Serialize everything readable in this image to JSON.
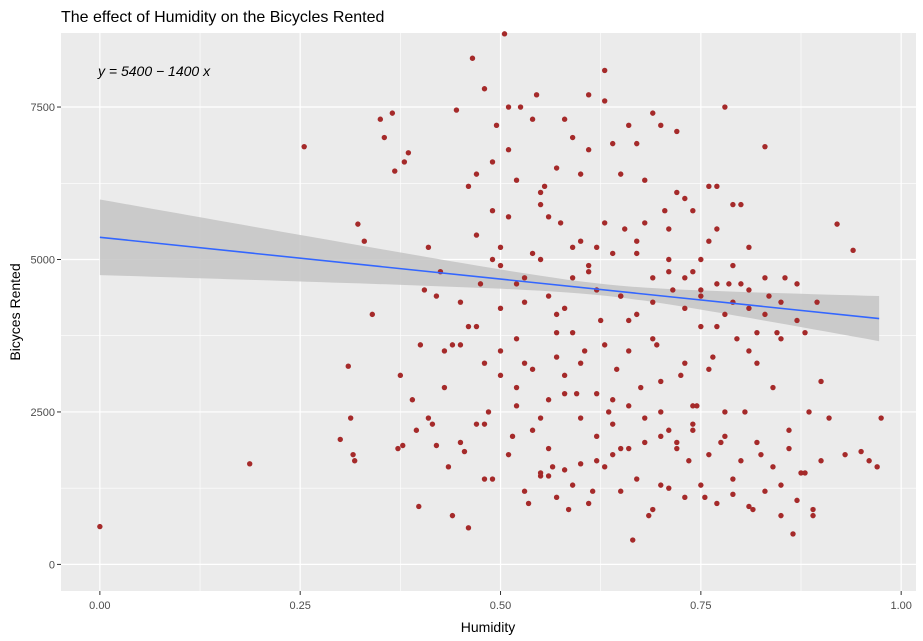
{
  "chart_data": {
    "type": "scatter",
    "title": "The effect of Humidity on the Bicycles Rented",
    "xlabel": "Humidity",
    "ylabel": "Bicyces Rented",
    "xlim": [
      -0.0485,
      1.0185
    ],
    "ylim": [
      -436,
      8714
    ],
    "x_ticks": [
      0.0,
      0.25,
      0.5,
      0.75,
      1.0
    ],
    "x_tick_labels": [
      "0.00",
      "0.25",
      "0.50",
      "0.75",
      "1.00"
    ],
    "y_ticks": [
      0,
      2500,
      5000,
      7500
    ],
    "y_tick_labels": [
      "0",
      "2500",
      "5000",
      "7500"
    ],
    "grid": true,
    "annotation": "y = 5400 − 1400 x",
    "colors": {
      "panel": "#ebebeb",
      "grid": "#ffffff",
      "points": "#a52a2a",
      "fit_line": "#3366ff",
      "confidence_band": "#c4c4c4"
    },
    "fit": {
      "intercept": 5364,
      "slope": -1371,
      "x_range": [
        0.0,
        0.9725
      ],
      "band_halfwidth_ends": [
        620,
        370
      ],
      "band_halfwidth_center": 95,
      "band_center_x": 0.63
    },
    "series": [
      {
        "x": [
          0.0,
          0.187,
          0.255,
          0.3,
          0.31,
          0.313,
          0.316,
          0.318,
          0.322,
          0.33,
          0.34,
          0.35,
          0.355,
          0.365,
          0.368,
          0.372,
          0.375,
          0.378,
          0.38,
          0.385,
          0.39,
          0.395,
          0.398,
          0.4,
          0.405,
          0.41,
          0.415,
          0.42,
          0.425,
          0.43,
          0.435,
          0.44,
          0.445,
          0.45,
          0.455,
          0.46,
          0.465,
          0.47,
          0.475,
          0.48,
          0.485,
          0.49,
          0.495,
          0.5,
          0.505,
          0.51,
          0.515,
          0.52,
          0.525,
          0.53,
          0.535,
          0.54,
          0.545,
          0.55,
          0.555,
          0.56,
          0.565,
          0.57,
          0.575,
          0.58,
          0.585,
          0.59,
          0.595,
          0.6,
          0.605,
          0.61,
          0.615,
          0.62,
          0.625,
          0.63,
          0.635,
          0.64,
          0.645,
          0.65,
          0.655,
          0.66,
          0.665,
          0.67,
          0.675,
          0.68,
          0.685,
          0.69,
          0.695,
          0.7,
          0.705,
          0.71,
          0.715,
          0.72,
          0.725,
          0.73,
          0.735,
          0.74,
          0.745,
          0.75,
          0.755,
          0.76,
          0.765,
          0.77,
          0.775,
          0.78,
          0.785,
          0.79,
          0.795,
          0.8,
          0.805,
          0.81,
          0.815,
          0.82,
          0.825,
          0.83,
          0.835,
          0.84,
          0.845,
          0.85,
          0.855,
          0.86,
          0.865,
          0.87,
          0.875,
          0.88,
          0.885,
          0.89,
          0.895,
          0.9,
          0.91,
          0.92,
          0.93,
          0.94,
          0.95,
          0.96,
          0.97,
          0.975,
          0.46,
          0.47,
          0.48,
          0.49,
          0.5,
          0.51,
          0.52,
          0.53,
          0.54,
          0.55,
          0.56,
          0.57,
          0.58,
          0.59,
          0.6,
          0.61,
          0.62,
          0.63,
          0.64,
          0.65,
          0.66,
          0.67,
          0.68,
          0.69,
          0.7,
          0.71,
          0.72,
          0.73,
          0.74,
          0.75,
          0.76,
          0.77,
          0.78,
          0.79,
          0.8,
          0.81,
          0.82,
          0.5,
          0.52,
          0.54,
          0.56,
          0.58,
          0.6,
          0.62,
          0.64,
          0.66,
          0.68,
          0.7,
          0.72,
          0.74,
          0.76,
          0.48,
          0.5,
          0.52,
          0.55,
          0.57,
          0.59,
          0.61,
          0.63,
          0.65,
          0.67,
          0.69,
          0.71,
          0.73,
          0.75,
          0.77,
          0.79,
          0.81,
          0.83,
          0.85,
          0.87,
          0.45,
          0.47,
          0.49,
          0.51,
          0.53,
          0.55,
          0.57,
          0.59,
          0.61,
          0.63,
          0.65,
          0.67,
          0.69,
          0.71,
          0.73,
          0.75,
          0.77,
          0.79,
          0.81,
          0.83,
          0.85,
          0.42,
          0.44,
          0.46,
          0.48,
          0.5,
          0.52,
          0.54,
          0.56,
          0.58,
          0.6,
          0.62,
          0.64,
          0.66,
          0.68,
          0.7,
          0.72,
          0.74,
          0.76,
          0.78,
          0.8,
          0.82,
          0.84,
          0.86,
          0.88,
          0.9,
          0.41,
          0.43,
          0.45,
          0.47,
          0.49,
          0.51,
          0.53,
          0.55,
          0.57,
          0.59,
          0.61,
          0.63,
          0.65,
          0.67,
          0.69,
          0.71,
          0.73,
          0.75,
          0.77,
          0.79,
          0.81,
          0.83,
          0.85,
          0.87,
          0.89,
          0.55,
          0.58,
          0.62,
          0.66,
          0.7,
          0.74,
          0.78,
          0.64,
          0.6,
          0.56
        ],
        "y": [
          620,
          1650,
          6850,
          2050,
          3250,
          2400,
          1800,
          1700,
          5580,
          5300,
          4100,
          7300,
          7000,
          7400,
          6450,
          1900,
          3100,
          1950,
          6600,
          6750,
          2700,
          2200,
          950,
          3600,
          4500,
          5200,
          2300,
          1950,
          4800,
          3500,
          1600,
          800,
          7450,
          4300,
          1850,
          6200,
          8300,
          3900,
          4600,
          1400,
          2500,
          5800,
          7200,
          4900,
          8700,
          6800,
          2100,
          3700,
          7500,
          3300,
          1000,
          5100,
          7700,
          2400,
          6200,
          4400,
          1600,
          3800,
          5600,
          7300,
          900,
          4700,
          2800,
          6400,
          3500,
          7700,
          1200,
          5200,
          4000,
          8100,
          2500,
          6900,
          3200,
          1900,
          5500,
          7200,
          400,
          4100,
          2900,
          6300,
          800,
          7400,
          3600,
          1300,
          5800,
          2200,
          4500,
          7100,
          3100,
          6000,
          1700,
          4800,
          2600,
          3900,
          1100,
          5300,
          3400,
          6200,
          2000,
          7500,
          4600,
          1400,
          3700,
          5900,
          2500,
          4200,
          900,
          3300,
          1800,
          6850,
          4400,
          2900,
          3800,
          1300,
          4700,
          2200,
          500,
          4600,
          1500,
          3800,
          2500,
          800,
          4300,
          3000,
          2400,
          5580,
          1800,
          5150,
          1850,
          1700,
          1600,
          2400,
          600,
          6400,
          7800,
          6600,
          5200,
          7500,
          6300,
          4700,
          7300,
          6100,
          5700,
          6500,
          4200,
          7000,
          5300,
          6800,
          4500,
          7600,
          5100,
          6400,
          4000,
          6900,
          5600,
          4300,
          7200,
          5000,
          6100,
          4700,
          5800,
          4400,
          6200,
          5500,
          4100,
          5900,
          4600,
          5200,
          3800,
          3100,
          2600,
          2200,
          1900,
          2800,
          3300,
          2100,
          2700,
          3500,
          2400,
          3000,
          2000,
          2600,
          3200,
          2300,
          4200,
          4600,
          5000,
          3400,
          3800,
          4900,
          3600,
          4400,
          5300,
          3700,
          4800,
          3300,
          4500,
          3900,
          4300,
          3500,
          4100,
          3700,
          4000,
          3600,
          5400,
          5000,
          5700,
          4300,
          5900,
          4100,
          5200,
          4800,
          5600,
          4400,
          5100,
          4700,
          5500,
          4200,
          5000,
          4600,
          4900,
          4500,
          4700,
          4300,
          4400,
          3600,
          3900,
          3300,
          3500,
          2900,
          3200,
          2700,
          3100,
          2400,
          2800,
          2300,
          2600,
          2000,
          2500,
          1900,
          2200,
          1800,
          2100,
          1700,
          2000,
          1600,
          1900,
          1500,
          1700,
          2400,
          2900,
          2000,
          2300,
          1400,
          1800,
          1200,
          1500,
          1100,
          1300,
          1000,
          1600,
          1200,
          1400,
          900,
          1250,
          1100,
          1300,
          1000,
          1150,
          950,
          1200,
          800,
          1050,
          900,
          1450,
          1550,
          1700,
          1900,
          2100,
          2300,
          2500,
          1800,
          1650,
          1450
        ]
      }
    ]
  }
}
